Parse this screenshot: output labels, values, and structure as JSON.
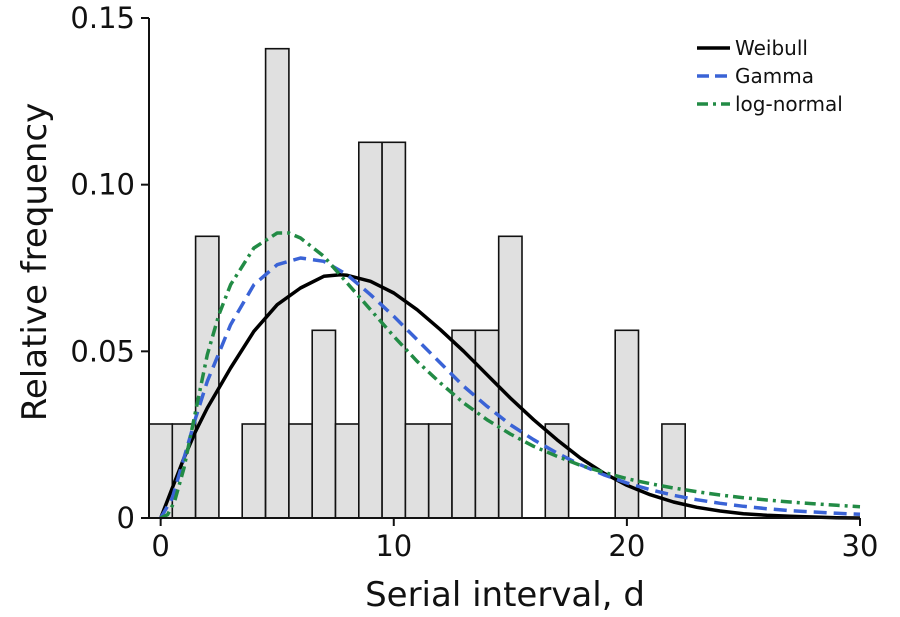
{
  "chart_data": {
    "type": "bar",
    "xlabel": "Serial interval, d",
    "ylabel": "Relative frequency",
    "xlim": [
      -0.5,
      30
    ],
    "ylim": [
      0,
      0.15
    ],
    "x_ticks": [
      0,
      10,
      20,
      30
    ],
    "x_tick_labels": [
      "0",
      "10",
      "20",
      "30"
    ],
    "y_ticks": [
      0,
      0.05,
      0.1,
      0.15
    ],
    "y_tick_labels": [
      "0",
      "0.05",
      "0.10",
      "0.15"
    ],
    "grid": false,
    "legend_position": "top-right",
    "bar_color": "#e0e0e0",
    "bars": [
      {
        "x": 0,
        "value": 0.0282
      },
      {
        "x": 1,
        "value": 0.0282
      },
      {
        "x": 2,
        "value": 0.0845
      },
      {
        "x": 4,
        "value": 0.0282
      },
      {
        "x": 5,
        "value": 0.1408
      },
      {
        "x": 6,
        "value": 0.0282
      },
      {
        "x": 7,
        "value": 0.0563
      },
      {
        "x": 8,
        "value": 0.0282
      },
      {
        "x": 9,
        "value": 0.1127
      },
      {
        "x": 10,
        "value": 0.1127
      },
      {
        "x": 11,
        "value": 0.0282
      },
      {
        "x": 12,
        "value": 0.0282
      },
      {
        "x": 13,
        "value": 0.0563
      },
      {
        "x": 14,
        "value": 0.0563
      },
      {
        "x": 15,
        "value": 0.0845
      },
      {
        "x": 17,
        "value": 0.0282
      },
      {
        "x": 20,
        "value": 0.0563
      },
      {
        "x": 22,
        "value": 0.0282
      }
    ],
    "series": [
      {
        "name": "Weibull",
        "color": "#000000",
        "dash": "solid",
        "x": [
          0,
          0.5,
          1,
          1.5,
          2,
          3,
          4,
          5,
          6,
          7,
          7.7,
          8,
          9,
          10,
          11,
          12,
          13,
          14,
          15,
          16,
          17,
          18,
          19,
          20,
          21,
          22,
          23,
          24,
          25,
          26,
          27,
          28,
          29,
          30
        ],
        "values": [
          0.0,
          0.009,
          0.018,
          0.026,
          0.033,
          0.045,
          0.056,
          0.064,
          0.069,
          0.0725,
          0.073,
          0.0728,
          0.071,
          0.0675,
          0.0625,
          0.0565,
          0.05,
          0.043,
          0.036,
          0.0295,
          0.0235,
          0.018,
          0.0135,
          0.0098,
          0.007,
          0.0048,
          0.0032,
          0.0021,
          0.0013,
          0.0008,
          0.0005,
          0.0003,
          0.0001,
          0.0
        ]
      },
      {
        "name": "Gamma",
        "color": "#3a63d6",
        "dash": "long-dash",
        "x": [
          0,
          0.5,
          1,
          1.5,
          2,
          3,
          4,
          5,
          6,
          7,
          8,
          9,
          10,
          11,
          12,
          13,
          14,
          15,
          16,
          17,
          18,
          19,
          20,
          21,
          22,
          23,
          24,
          25,
          26,
          27,
          28,
          29,
          30
        ],
        "values": [
          0.0,
          0.006,
          0.018,
          0.03,
          0.041,
          0.058,
          0.07,
          0.076,
          0.078,
          0.077,
          0.073,
          0.067,
          0.0605,
          0.0535,
          0.0465,
          0.0395,
          0.0335,
          0.028,
          0.0235,
          0.0195,
          0.016,
          0.013,
          0.0105,
          0.0085,
          0.0068,
          0.0055,
          0.0044,
          0.0035,
          0.0028,
          0.0022,
          0.0018,
          0.0014,
          0.0011
        ]
      },
      {
        "name": "log-normal",
        "color": "#228b45",
        "dash": "dash-dot",
        "x": [
          0,
          0.3,
          0.6,
          1,
          1.5,
          2,
          2.5,
          3,
          4,
          5,
          5.5,
          6,
          7,
          8,
          9,
          10,
          11,
          12,
          13,
          14,
          15,
          16,
          17,
          18,
          19,
          20,
          21,
          22,
          23,
          24,
          25,
          26,
          27,
          28,
          29,
          30
        ],
        "values": [
          0.0,
          0.001,
          0.005,
          0.015,
          0.032,
          0.049,
          0.061,
          0.07,
          0.081,
          0.0855,
          0.0855,
          0.084,
          0.0785,
          0.0705,
          0.0625,
          0.0545,
          0.047,
          0.0405,
          0.0345,
          0.0295,
          0.0252,
          0.0215,
          0.0185,
          0.0158,
          0.0137,
          0.0118,
          0.0103,
          0.009,
          0.0079,
          0.0069,
          0.0061,
          0.0054,
          0.0048,
          0.0043,
          0.0038,
          0.0034
        ]
      }
    ]
  }
}
